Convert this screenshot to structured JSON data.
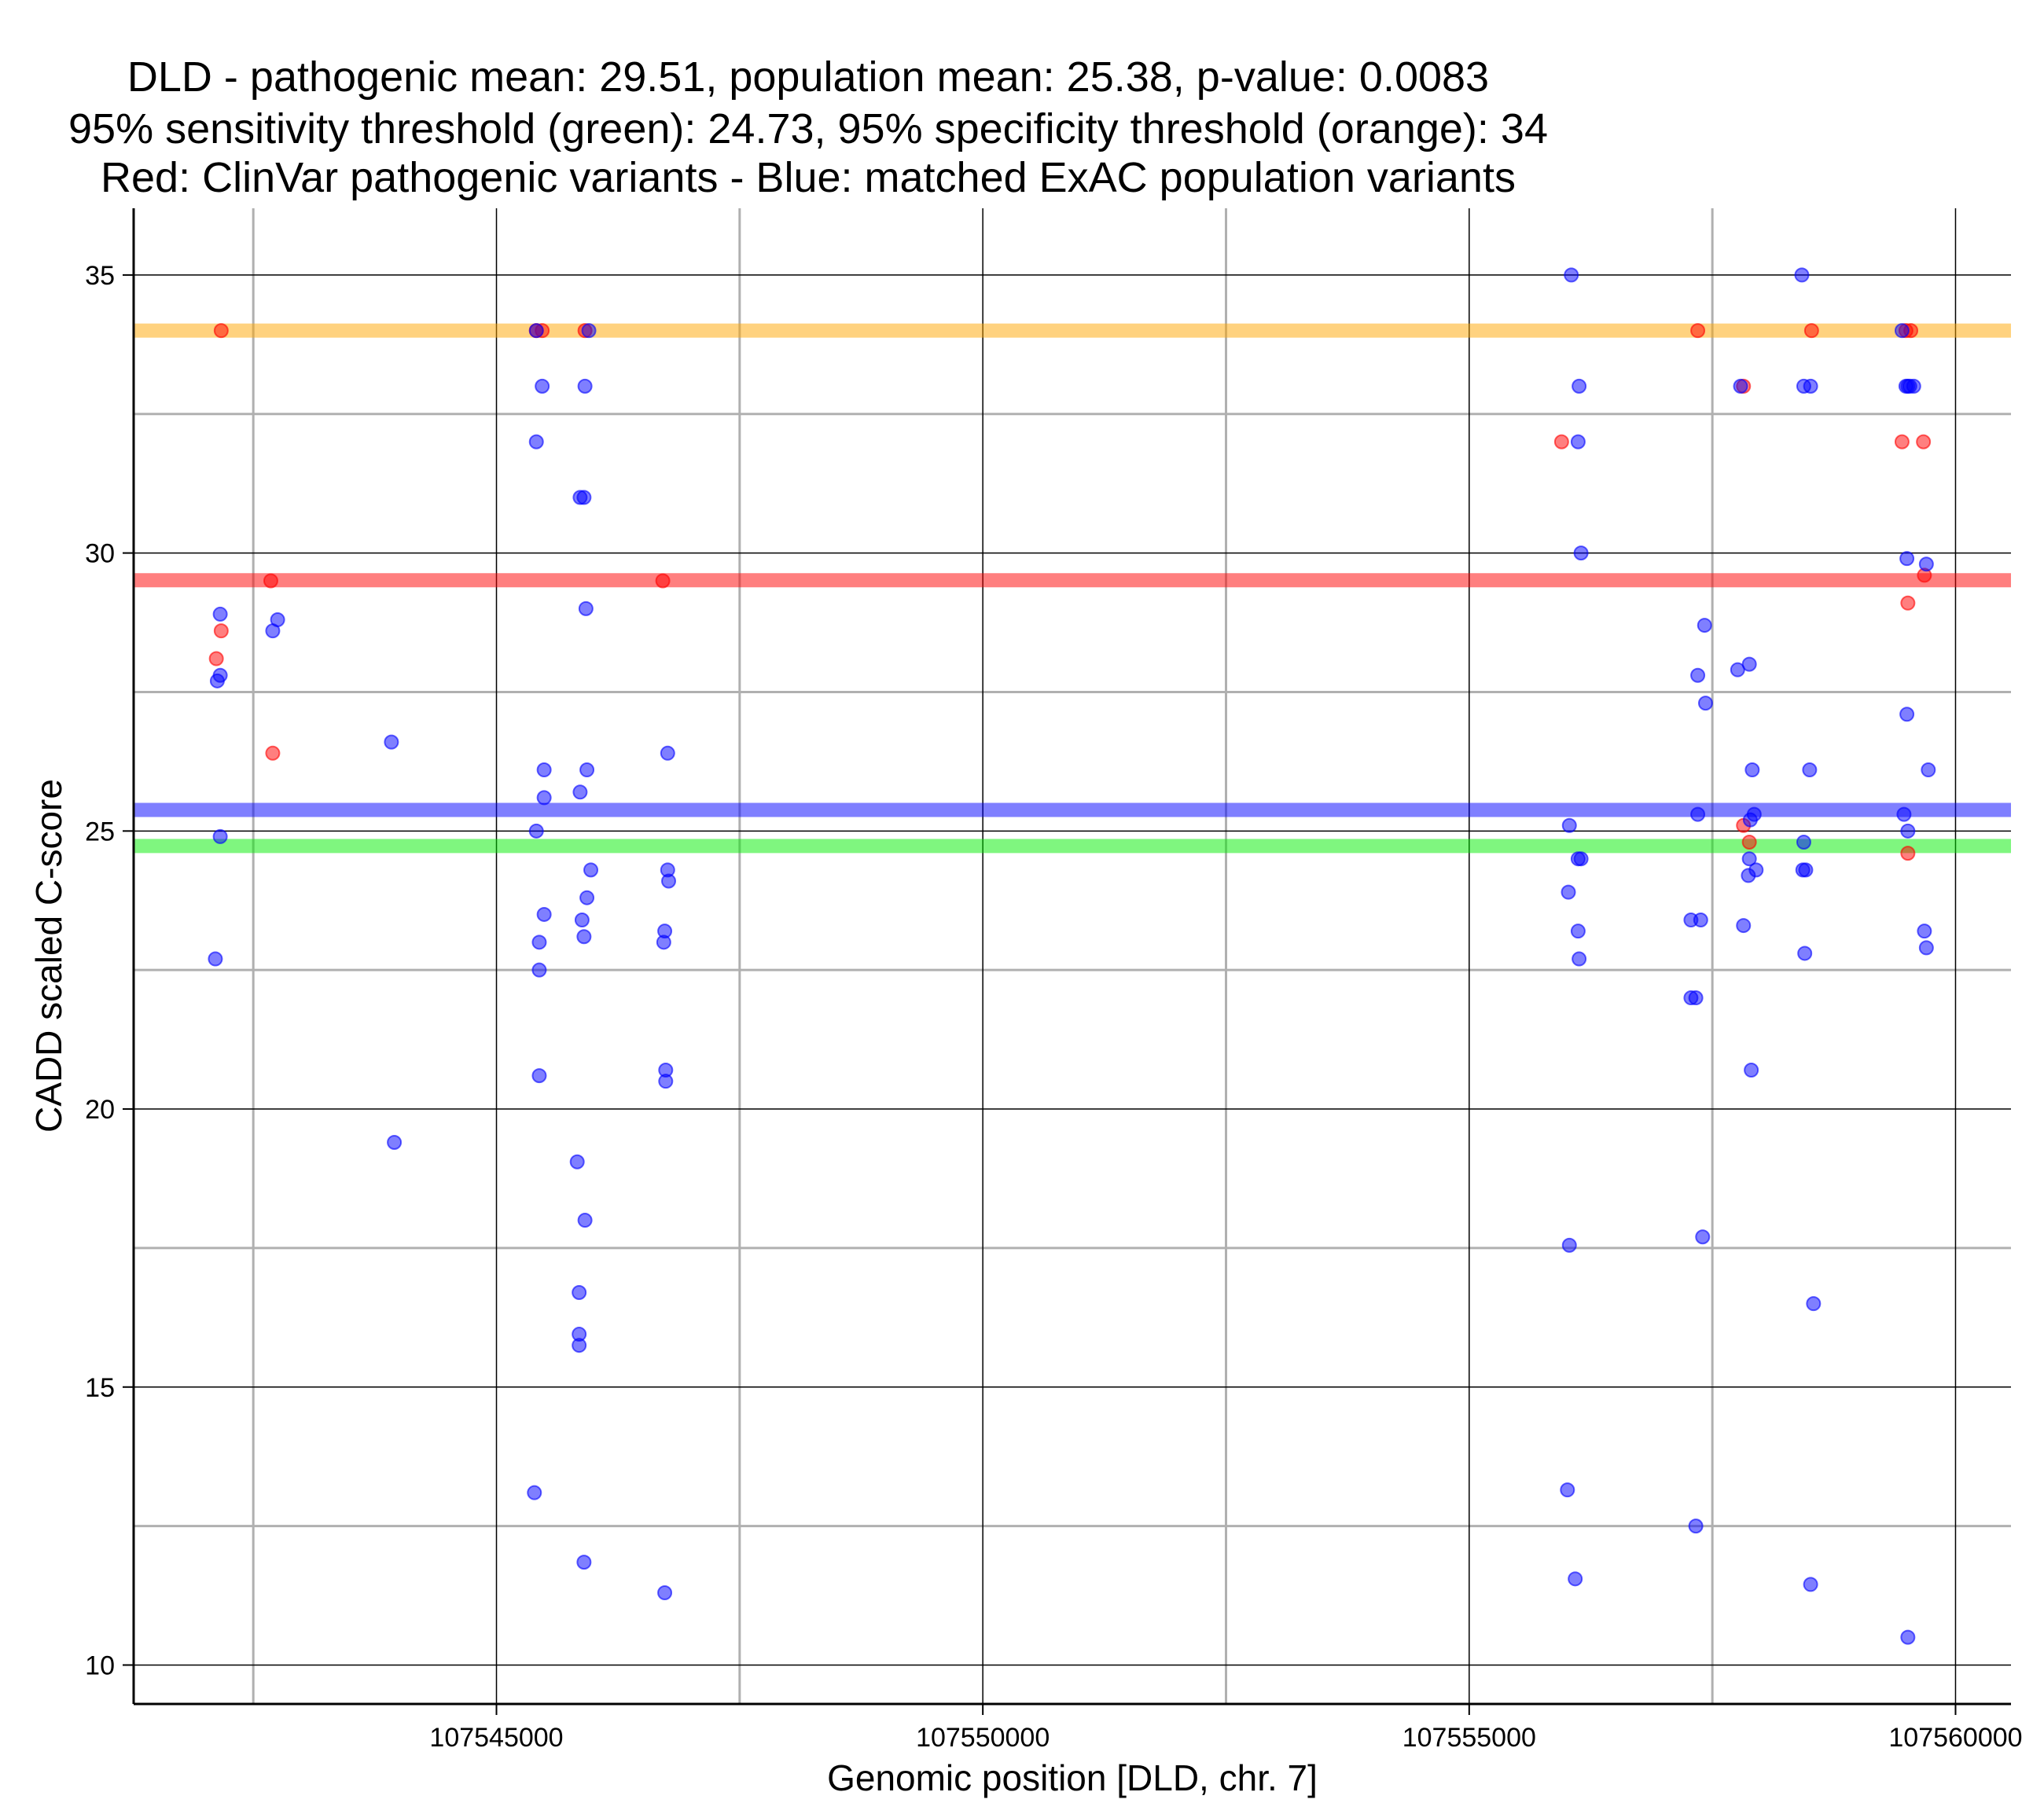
{
  "chart_data": {
    "type": "scatter",
    "title_lines": [
      "DLD - pathogenic mean: 29.51, population mean: 25.38, p-value: 0.0083",
      "95% sensitivity threshold (green): 24.73, 95% specificity threshold (orange): 34",
      "Red: ClinVar pathogenic variants - Blue: matched ExAC population variants"
    ],
    "xlabel": "Genomic position [DLD, chr. 7]",
    "ylabel": "CADD scaled C-score",
    "xlim": [
      107541270,
      107560570
    ],
    "ylim": [
      9.3,
      36.2
    ],
    "x_major_ticks": [
      107545000,
      107550000,
      107555000,
      107560000
    ],
    "x_minor_ticks": [
      107542500,
      107547500,
      107552500,
      107557500
    ],
    "y_major_ticks": [
      10,
      15,
      20,
      25,
      30,
      35
    ],
    "y_minor_ticks": [
      12.5,
      17.5,
      22.5,
      27.5,
      32.5
    ],
    "grid": true,
    "colors": {
      "pathogenic": "#ff0000",
      "population": "#0000ff",
      "sensitivity": "#00ee00",
      "specificity": "#ffa500"
    },
    "hlines": [
      {
        "name": "pathogenic mean",
        "y": 29.51,
        "color": "#ff0000"
      },
      {
        "name": "population mean",
        "y": 25.38,
        "color": "#0000ff"
      },
      {
        "name": "95% sensitivity threshold",
        "y": 24.73,
        "color": "#00ee00"
      },
      {
        "name": "95% specificity threshold",
        "y": 34,
        "color": "#ffa500"
      }
    ],
    "series": [
      {
        "name": "ClinVar pathogenic variants",
        "color": "#ff0000",
        "points": [
          [
            107542170,
            34
          ],
          [
            107542170,
            28.6
          ],
          [
            107542120,
            28.1
          ],
          [
            107542680,
            29.5
          ],
          [
            107542700,
            26.4
          ],
          [
            107545410,
            34
          ],
          [
            107545470,
            34
          ],
          [
            107545910,
            34
          ],
          [
            107546710,
            29.5
          ],
          [
            107555950,
            32
          ],
          [
            107557350,
            34
          ],
          [
            107557820,
            33
          ],
          [
            107557820,
            25.1
          ],
          [
            107557880,
            24.8
          ],
          [
            107558520,
            34
          ],
          [
            107559450,
            32
          ],
          [
            107559490,
            34
          ],
          [
            107559510,
            29.1
          ],
          [
            107559510,
            24.6
          ],
          [
            107559540,
            34
          ],
          [
            107559670,
            32
          ],
          [
            107559680,
            29.6
          ]
        ]
      },
      {
        "name": "matched ExAC population variants",
        "color": "#0000ff",
        "points": [
          [
            107542160,
            28.9
          ],
          [
            107542160,
            27.8
          ],
          [
            107542130,
            27.7
          ],
          [
            107542160,
            24.9
          ],
          [
            107542110,
            22.7
          ],
          [
            107542750,
            28.8
          ],
          [
            107542700,
            28.6
          ],
          [
            107543920,
            26.6
          ],
          [
            107543950,
            19.4
          ],
          [
            107545410,
            34
          ],
          [
            107545470,
            33
          ],
          [
            107545410,
            32
          ],
          [
            107545490,
            26.1
          ],
          [
            107545490,
            25.6
          ],
          [
            107545410,
            25
          ],
          [
            107545490,
            23.5
          ],
          [
            107545440,
            23
          ],
          [
            107545440,
            22.5
          ],
          [
            107545440,
            20.6
          ],
          [
            107545390,
            13.1
          ],
          [
            107545860,
            31
          ],
          [
            107545900,
            31
          ],
          [
            107545910,
            33
          ],
          [
            107545920,
            29
          ],
          [
            107545930,
            26.1
          ],
          [
            107545860,
            25.7
          ],
          [
            107545970,
            24.3
          ],
          [
            107545930,
            23.8
          ],
          [
            107545880,
            23.4
          ],
          [
            107545900,
            23.1
          ],
          [
            107545830,
            19.05
          ],
          [
            107545910,
            18
          ],
          [
            107545850,
            16.7
          ],
          [
            107545850,
            15.95
          ],
          [
            107545850,
            15.75
          ],
          [
            107545900,
            11.85
          ],
          [
            107545950,
            34
          ],
          [
            107546760,
            26.4
          ],
          [
            107546760,
            24.3
          ],
          [
            107546770,
            24.1
          ],
          [
            107546730,
            23.2
          ],
          [
            107546720,
            23
          ],
          [
            107546740,
            20.7
          ],
          [
            107546740,
            20.5
          ],
          [
            107546730,
            11.3
          ],
          [
            107556050,
            35
          ],
          [
            107556130,
            33
          ],
          [
            107556120,
            32
          ],
          [
            107556150,
            30
          ],
          [
            107556030,
            25.1
          ],
          [
            107556120,
            24.5
          ],
          [
            107556150,
            24.5
          ],
          [
            107556020,
            23.9
          ],
          [
            107556120,
            23.2
          ],
          [
            107556130,
            22.7
          ],
          [
            107556030,
            17.55
          ],
          [
            107556010,
            13.15
          ],
          [
            107556090,
            11.55
          ],
          [
            107557420,
            28.7
          ],
          [
            107557350,
            27.8
          ],
          [
            107557430,
            27.3
          ],
          [
            107557350,
            25.3
          ],
          [
            107557280,
            23.4
          ],
          [
            107557380,
            23.4
          ],
          [
            107557280,
            22
          ],
          [
            107557330,
            22
          ],
          [
            107557400,
            17.7
          ],
          [
            107557330,
            12.5
          ],
          [
            107557790,
            33
          ],
          [
            107557760,
            27.9
          ],
          [
            107557880,
            28
          ],
          [
            107557910,
            26.1
          ],
          [
            107557930,
            25.3
          ],
          [
            107557890,
            25.2
          ],
          [
            107557880,
            24.5
          ],
          [
            107557870,
            24.2
          ],
          [
            107557950,
            24.3
          ],
          [
            107557820,
            23.3
          ],
          [
            107557900,
            20.7
          ],
          [
            107558420,
            35
          ],
          [
            107558440,
            33
          ],
          [
            107558510,
            33
          ],
          [
            107558500,
            26.1
          ],
          [
            107558440,
            24.8
          ],
          [
            107558430,
            24.3
          ],
          [
            107558460,
            24.3
          ],
          [
            107558450,
            22.8
          ],
          [
            107558540,
            16.5
          ],
          [
            107558510,
            11.45
          ],
          [
            107559450,
            34
          ],
          [
            107559490,
            33
          ],
          [
            107559510,
            33
          ],
          [
            107559530,
            33
          ],
          [
            107559570,
            33
          ],
          [
            107559500,
            29.9
          ],
          [
            107559700,
            29.8
          ],
          [
            107559500,
            27.1
          ],
          [
            107559720,
            26.1
          ],
          [
            107559470,
            25.3
          ],
          [
            107559510,
            25
          ],
          [
            107559680,
            23.2
          ],
          [
            107559700,
            22.9
          ],
          [
            107559510,
            10.5
          ]
        ]
      }
    ]
  }
}
